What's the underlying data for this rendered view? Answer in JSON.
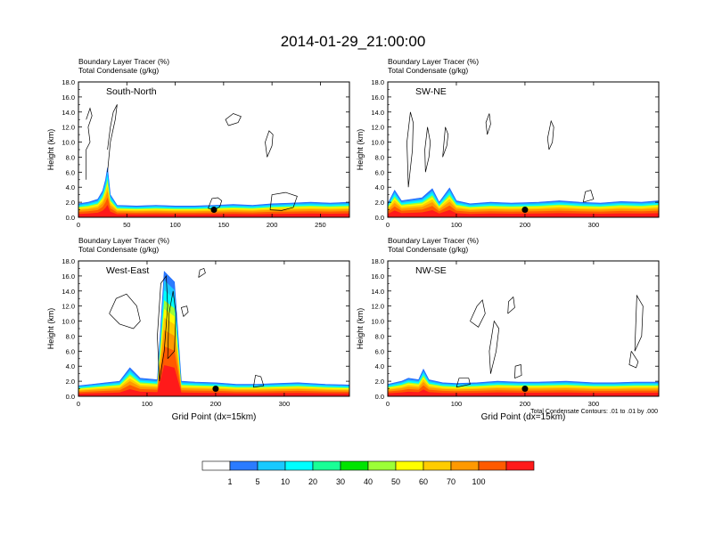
{
  "figure": {
    "title": "2014-01-29_21:00:00",
    "footnote": "Total Condensate Contours: .01 to .01 by .000",
    "colorbar": {
      "colors": [
        "#ffffff",
        "#2b7bff",
        "#19c9ff",
        "#00ffff",
        "#19ff96",
        "#00e400",
        "#9cff37",
        "#ffff00",
        "#ffcc00",
        "#ff9900",
        "#ff5a00",
        "#ff1a1a"
      ],
      "labels": [
        "1",
        "5",
        "10",
        "20",
        "30",
        "40",
        "50",
        "60",
        "70",
        "100"
      ]
    }
  },
  "chart_data": [
    {
      "type": "heatmap",
      "subtitle_line1": "Boundary Layer Tracer   (%)",
      "subtitle_line2": "Total Condensate   (g/kg)",
      "panel_label": "South-North",
      "xlabel": "",
      "ylabel": "Height (km)",
      "xlim": [
        0,
        280
      ],
      "ylim": [
        0,
        18
      ],
      "x_ticks": [
        0,
        50,
        100,
        150,
        200,
        250
      ],
      "y_ticks": [
        "0.0",
        "2.0",
        "4.0",
        "6.0",
        "8.0",
        "10.0",
        "12.0",
        "14.0",
        "16.0",
        "18.0"
      ],
      "marker": {
        "x": 140,
        "y": 1.0
      },
      "tracer_top_km": [
        1.8,
        2.0,
        2.4,
        3.5,
        5.0,
        6.6,
        3.0,
        1.6,
        1.5,
        1.6,
        1.5,
        1.5,
        1.6,
        1.7,
        1.6,
        1.8,
        1.9,
        2.0,
        1.9,
        2.0
      ],
      "tracer_x": [
        0,
        10,
        20,
        25,
        28,
        30,
        33,
        40,
        60,
        80,
        100,
        120,
        140,
        160,
        180,
        200,
        220,
        240,
        260,
        280
      ],
      "condensate_contours": [
        {
          "x": [
            8,
            8,
            12,
            10,
            14,
            12,
            8
          ],
          "y": [
            5,
            9,
            10,
            12,
            13.5,
            14.5,
            13
          ]
        },
        {
          "x": [
            30,
            33,
            38,
            40,
            36,
            33,
            30
          ],
          "y": [
            6,
            10,
            13,
            15,
            14,
            12,
            9
          ]
        },
        {
          "x": [
            155,
            165,
            168,
            160,
            152,
            155
          ],
          "y": [
            12.2,
            12.6,
            13.4,
            13.8,
            13,
            12.2
          ]
        },
        {
          "x": [
            195,
            200,
            201,
            197,
            193,
            195
          ],
          "y": [
            8,
            9.5,
            11,
            11.5,
            10,
            8
          ]
        },
        {
          "x": [
            134,
            140,
            146,
            148,
            144,
            138,
            134
          ],
          "y": [
            1.2,
            1.0,
            1.4,
            2.2,
            2.6,
            2.5,
            1.2
          ]
        },
        {
          "x": [
            198,
            210,
            222,
            226,
            214,
            200,
            198
          ],
          "y": [
            1.0,
            0.9,
            1.3,
            2.8,
            3.3,
            3.0,
            1.0
          ]
        }
      ]
    },
    {
      "type": "heatmap",
      "subtitle_line1": "Boundary Layer Tracer   (%)",
      "subtitle_line2": "Total Condensate   (g/kg)",
      "panel_label": "SW-NE",
      "xlabel": "",
      "ylabel": "Height (km)",
      "xlim": [
        0,
        395
      ],
      "ylim": [
        0,
        18
      ],
      "x_ticks": [
        0,
        100,
        200,
        300
      ],
      "y_ticks": [
        "0.0",
        "2.0",
        "4.0",
        "6.0",
        "8.0",
        "10.0",
        "12.0",
        "14.0",
        "16.0",
        "18.0"
      ],
      "marker": {
        "x": 200,
        "y": 1.0
      },
      "tracer_top_km": [
        1.8,
        3.6,
        2.2,
        2.6,
        3.8,
        2.0,
        3.9,
        2.2,
        1.8,
        2.0,
        1.9,
        2.0,
        2.2,
        2.0,
        1.9,
        2.1,
        2.0,
        2.2
      ],
      "tracer_x": [
        0,
        10,
        20,
        50,
        65,
        75,
        90,
        100,
        120,
        150,
        180,
        220,
        250,
        280,
        310,
        340,
        370,
        395
      ],
      "condensate_contours": [
        {
          "x": [
            30,
            36,
            37,
            33,
            28,
            30
          ],
          "y": [
            4,
            9,
            12.6,
            14,
            10,
            4
          ]
        },
        {
          "x": [
            55,
            60,
            62,
            58,
            54,
            55
          ],
          "y": [
            6,
            8,
            10,
            12,
            9,
            6
          ]
        },
        {
          "x": [
            80,
            86,
            88,
            84,
            80
          ],
          "y": [
            8,
            9.5,
            11,
            12,
            8
          ]
        },
        {
          "x": [
            145,
            150,
            148,
            143,
            145
          ],
          "y": [
            11,
            12.4,
            13.8,
            12.6,
            11
          ]
        },
        {
          "x": [
            235,
            240,
            242,
            238,
            233,
            235
          ],
          "y": [
            9,
            10,
            12,
            12.8,
            10.5,
            9
          ]
        },
        {
          "x": [
            285,
            300,
            296,
            288,
            285
          ],
          "y": [
            2,
            2.4,
            3.6,
            3.4,
            2
          ]
        }
      ]
    },
    {
      "type": "heatmap",
      "subtitle_line1": "Boundary Layer Tracer   (%)",
      "subtitle_line2": "Total Condensate   (g/kg)",
      "panel_label": "West-East",
      "xlabel": "Grid Point (dx=15km)",
      "ylabel": "Height (km)",
      "xlim": [
        0,
        395
      ],
      "ylim": [
        0,
        18
      ],
      "x_ticks": [
        0,
        100,
        200,
        300
      ],
      "y_ticks": [
        "0.0",
        "2.0",
        "4.0",
        "6.0",
        "8.0",
        "10.0",
        "12.0",
        "14.0",
        "16.0",
        "18.0"
      ],
      "marker": {
        "x": 200,
        "y": 1.0
      },
      "tracer_top_km": [
        1.4,
        1.6,
        1.8,
        2.0,
        3.8,
        2.4,
        2.2,
        16.6,
        15.2,
        2.0,
        1.9,
        1.8,
        1.6,
        1.6,
        1.7,
        1.8,
        1.6,
        1.5
      ],
      "tracer_x": [
        0,
        20,
        40,
        60,
        75,
        90,
        115,
        125,
        140,
        150,
        170,
        200,
        230,
        260,
        290,
        320,
        360,
        395
      ],
      "condensate_contours": [
        {
          "x": [
            45,
            55,
            70,
            85,
            90,
            80,
            60,
            45
          ],
          "y": [
            11,
            13,
            13.6,
            12,
            10,
            9,
            9.6,
            11
          ]
        },
        {
          "x": [
            118,
            125,
            130,
            128,
            120,
            115,
            118
          ],
          "y": [
            2,
            6,
            12,
            16,
            15,
            8,
            2
          ]
        },
        {
          "x": [
            130,
            140,
            142,
            138,
            132,
            130
          ],
          "y": [
            5,
            6,
            11,
            14,
            11,
            5
          ]
        },
        {
          "x": [
            175,
            185,
            183,
            177,
            175
          ],
          "y": [
            15.8,
            16.4,
            17.0,
            16.8,
            15.8
          ]
        },
        {
          "x": [
            153,
            160,
            158,
            150,
            153
          ],
          "y": [
            10.6,
            11.2,
            12.0,
            11.8,
            10.6
          ]
        },
        {
          "x": [
            255,
            270,
            266,
            258,
            255
          ],
          "y": [
            1.2,
            1.4,
            2.6,
            2.8,
            1.2
          ]
        }
      ]
    },
    {
      "type": "heatmap",
      "subtitle_line1": "Boundary Layer Tracer   (%)",
      "subtitle_line2": "Total Condensate   (g/kg)",
      "panel_label": "NW-SE",
      "xlabel": "Grid Point (dx=15km)",
      "ylabel": "Height (km)",
      "xlim": [
        0,
        395
      ],
      "ylim": [
        0,
        18
      ],
      "x_ticks": [
        0,
        100,
        200,
        300
      ],
      "y_ticks": [
        "0.0",
        "2.0",
        "4.0",
        "6.0",
        "8.0",
        "10.0",
        "12.0",
        "14.0",
        "16.0",
        "18.0"
      ],
      "marker": {
        "x": 200,
        "y": 1.0
      },
      "tracer_top_km": [
        1.6,
        2.0,
        2.4,
        2.2,
        3.6,
        2.2,
        1.8,
        1.7,
        1.8,
        2.0,
        1.9,
        1.9,
        2.0,
        1.8,
        1.8,
        1.9,
        1.9
      ],
      "tracer_x": [
        0,
        20,
        30,
        45,
        52,
        60,
        80,
        100,
        130,
        160,
        190,
        220,
        260,
        300,
        330,
        360,
        395
      ],
      "condensate_contours": [
        {
          "x": [
            120,
            130,
            138,
            142,
            132,
            120
          ],
          "y": [
            10,
            12,
            12.8,
            11,
            9.2,
            10
          ]
        },
        {
          "x": [
            150,
            158,
            162,
            155,
            148,
            150
          ],
          "y": [
            3,
            6,
            9,
            10,
            6,
            3
          ]
        },
        {
          "x": [
            175,
            185,
            183,
            176,
            175
          ],
          "y": [
            11,
            11.8,
            13.2,
            12.6,
            11
          ]
        },
        {
          "x": [
            185,
            195,
            194,
            186,
            185
          ],
          "y": [
            2.4,
            2.8,
            4.2,
            4.0,
            2.4
          ]
        },
        {
          "x": [
            360,
            370,
            372,
            363,
            360
          ],
          "y": [
            6,
            8,
            12,
            13.4,
            6
          ]
        },
        {
          "x": [
            355,
            365,
            362,
            352,
            355
          ],
          "y": [
            6,
            4.6,
            3.8,
            4.2,
            6
          ]
        },
        {
          "x": [
            100,
            120,
            118,
            104,
            100
          ],
          "y": [
            1.2,
            1.6,
            2.4,
            2.4,
            1.2
          ]
        }
      ]
    }
  ]
}
